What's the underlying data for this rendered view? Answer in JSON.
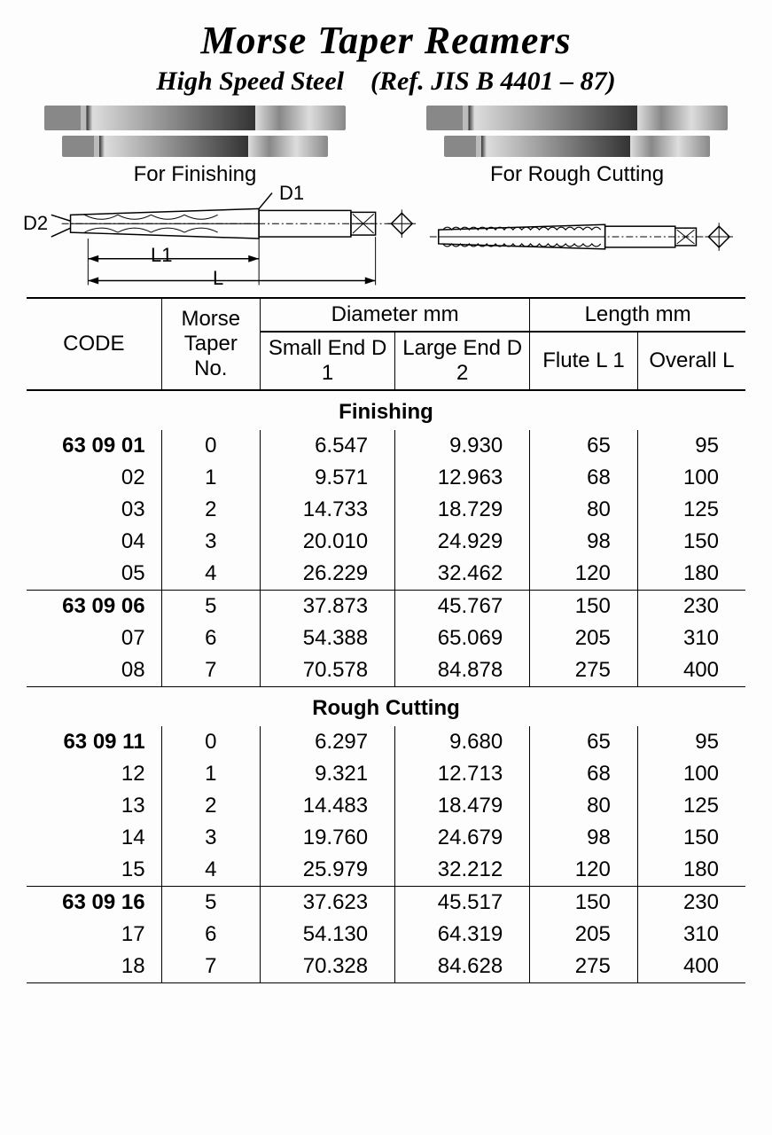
{
  "header": {
    "title": "Morse Taper Reamers",
    "subtitle": "High Speed Steel",
    "ref": "(Ref. JIS B 4401 – 87)"
  },
  "tool_labels": {
    "finishing": "For Finishing",
    "rough": "For Rough Cutting"
  },
  "diagram": {
    "d1": "D1",
    "d2": "D2",
    "l1": "L1",
    "l": "L"
  },
  "table": {
    "headers": {
      "code": "CODE",
      "taper": "Morse Taper No.",
      "diameter": "Diameter mm",
      "d1": "Small End D 1",
      "d2": "Large End D 2",
      "length": "Length mm",
      "l1": "Flute L 1",
      "l": "Overall L"
    },
    "sections": [
      {
        "label": "Finishing",
        "groups": [
          [
            {
              "code": "63 09 01",
              "taper": "0",
              "d1": "6.547",
              "d2": "9.930",
              "l1": "65",
              "l": "95"
            },
            {
              "code": "02",
              "taper": "1",
              "d1": "9.571",
              "d2": "12.963",
              "l1": "68",
              "l": "100"
            },
            {
              "code": "03",
              "taper": "2",
              "d1": "14.733",
              "d2": "18.729",
              "l1": "80",
              "l": "125"
            },
            {
              "code": "04",
              "taper": "3",
              "d1": "20.010",
              "d2": "24.929",
              "l1": "98",
              "l": "150"
            },
            {
              "code": "05",
              "taper": "4",
              "d1": "26.229",
              "d2": "32.462",
              "l1": "120",
              "l": "180"
            }
          ],
          [
            {
              "code": "63 09 06",
              "taper": "5",
              "d1": "37.873",
              "d2": "45.767",
              "l1": "150",
              "l": "230"
            },
            {
              "code": "07",
              "taper": "6",
              "d1": "54.388",
              "d2": "65.069",
              "l1": "205",
              "l": "310"
            },
            {
              "code": "08",
              "taper": "7",
              "d1": "70.578",
              "d2": "84.878",
              "l1": "275",
              "l": "400"
            }
          ]
        ]
      },
      {
        "label": "Rough Cutting",
        "groups": [
          [
            {
              "code": "63 09 11",
              "taper": "0",
              "d1": "6.297",
              "d2": "9.680",
              "l1": "65",
              "l": "95"
            },
            {
              "code": "12",
              "taper": "1",
              "d1": "9.321",
              "d2": "12.713",
              "l1": "68",
              "l": "100"
            },
            {
              "code": "13",
              "taper": "2",
              "d1": "14.483",
              "d2": "18.479",
              "l1": "80",
              "l": "125"
            },
            {
              "code": "14",
              "taper": "3",
              "d1": "19.760",
              "d2": "24.679",
              "l1": "98",
              "l": "150"
            },
            {
              "code": "15",
              "taper": "4",
              "d1": "25.979",
              "d2": "32.212",
              "l1": "120",
              "l": "180"
            }
          ],
          [
            {
              "code": "63 09 16",
              "taper": "5",
              "d1": "37.623",
              "d2": "45.517",
              "l1": "150",
              "l": "230"
            },
            {
              "code": "17",
              "taper": "6",
              "d1": "54.130",
              "d2": "64.319",
              "l1": "205",
              "l": "310"
            },
            {
              "code": "18",
              "taper": "7",
              "d1": "70.328",
              "d2": "84.628",
              "l1": "275",
              "l": "400"
            }
          ]
        ]
      }
    ]
  }
}
